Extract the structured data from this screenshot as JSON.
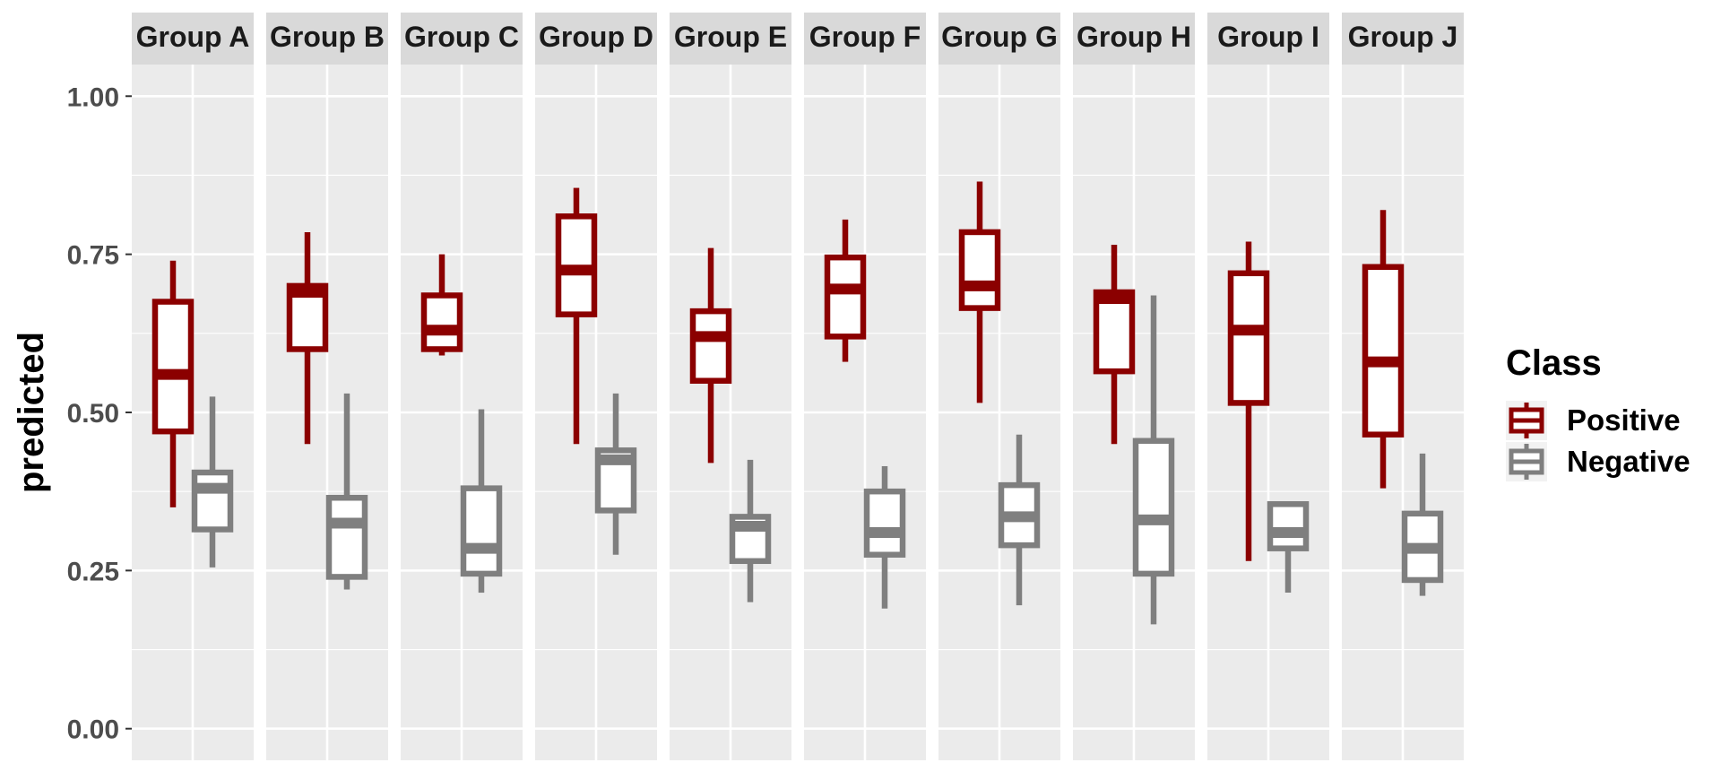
{
  "chart_data": {
    "type": "boxplot",
    "facet_by": "group",
    "facets": [
      "Group A",
      "Group B",
      "Group C",
      "Group D",
      "Group E",
      "Group F",
      "Group G",
      "Group H",
      "Group I",
      "Group J"
    ],
    "ylabel": "predicted",
    "xlabel": "",
    "ylim": [
      -0.05,
      1.05
    ],
    "yticks": [
      0.0,
      0.25,
      0.5,
      0.75,
      1.0
    ],
    "ytick_labels": [
      "0.00",
      "0.25",
      "0.50",
      "0.75",
      "1.00"
    ],
    "grid": true,
    "legend": {
      "title": "Class",
      "placement": "right",
      "entries": [
        "Positive",
        "Negative"
      ]
    },
    "colors": {
      "Positive": "#8b0000",
      "Negative": "#7f7f7f",
      "panel": "#ebebeb",
      "strip": "#d9d9d9"
    },
    "series": [
      {
        "name": "Positive",
        "boxes": [
          {
            "group": "Group A",
            "min": 0.35,
            "q1": 0.47,
            "median": 0.56,
            "q3": 0.675,
            "max": 0.74
          },
          {
            "group": "Group B",
            "min": 0.45,
            "q1": 0.6,
            "median": 0.69,
            "q3": 0.7,
            "max": 0.785
          },
          {
            "group": "Group C",
            "min": 0.59,
            "q1": 0.6,
            "median": 0.63,
            "q3": 0.685,
            "max": 0.75
          },
          {
            "group": "Group D",
            "min": 0.45,
            "q1": 0.655,
            "median": 0.725,
            "q3": 0.81,
            "max": 0.855
          },
          {
            "group": "Group E",
            "min": 0.42,
            "q1": 0.55,
            "median": 0.62,
            "q3": 0.66,
            "max": 0.76
          },
          {
            "group": "Group F",
            "min": 0.58,
            "q1": 0.62,
            "median": 0.695,
            "q3": 0.745,
            "max": 0.805
          },
          {
            "group": "Group G",
            "min": 0.515,
            "q1": 0.665,
            "median": 0.7,
            "q3": 0.785,
            "max": 0.865
          },
          {
            "group": "Group H",
            "min": 0.45,
            "q1": 0.565,
            "median": 0.68,
            "q3": 0.69,
            "max": 0.765
          },
          {
            "group": "Group I",
            "min": 0.265,
            "q1": 0.515,
            "median": 0.63,
            "q3": 0.72,
            "max": 0.77
          },
          {
            "group": "Group J",
            "min": 0.38,
            "q1": 0.465,
            "median": 0.58,
            "q3": 0.73,
            "max": 0.82
          }
        ]
      },
      {
        "name": "Negative",
        "boxes": [
          {
            "group": "Group A",
            "min": 0.255,
            "q1": 0.315,
            "median": 0.38,
            "q3": 0.405,
            "max": 0.525
          },
          {
            "group": "Group B",
            "min": 0.22,
            "q1": 0.24,
            "median": 0.325,
            "q3": 0.365,
            "max": 0.53
          },
          {
            "group": "Group C",
            "min": 0.215,
            "q1": 0.245,
            "median": 0.285,
            "q3": 0.38,
            "max": 0.505
          },
          {
            "group": "Group D",
            "min": 0.275,
            "q1": 0.345,
            "median": 0.425,
            "q3": 0.44,
            "max": 0.53
          },
          {
            "group": "Group E",
            "min": 0.2,
            "q1": 0.265,
            "median": 0.32,
            "q3": 0.335,
            "max": 0.425
          },
          {
            "group": "Group F",
            "min": 0.19,
            "q1": 0.275,
            "median": 0.31,
            "q3": 0.375,
            "max": 0.415
          },
          {
            "group": "Group G",
            "min": 0.195,
            "q1": 0.29,
            "median": 0.335,
            "q3": 0.385,
            "max": 0.465
          },
          {
            "group": "Group H",
            "min": 0.165,
            "q1": 0.245,
            "median": 0.33,
            "q3": 0.455,
            "max": 0.685
          },
          {
            "group": "Group I",
            "min": 0.215,
            "q1": 0.285,
            "median": 0.31,
            "q3": 0.355,
            "max": 0.355
          },
          {
            "group": "Group J",
            "min": 0.21,
            "q1": 0.235,
            "median": 0.285,
            "q3": 0.34,
            "max": 0.435
          }
        ]
      }
    ]
  }
}
